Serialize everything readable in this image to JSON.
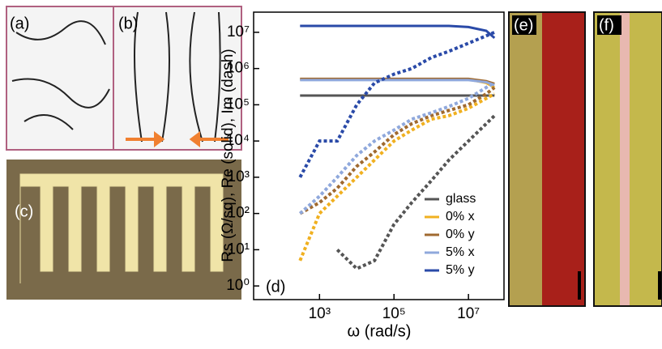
{
  "panels": {
    "a": "(a)",
    "b": "(b)",
    "c": "(c)",
    "e": "(e)",
    "f": "(f)"
  },
  "chart_data": {
    "type": "line",
    "annotation": "(d)",
    "xlabel": "ω (rad/s)",
    "ylabel": "Rs (Ω/sq),  Re (solid),  Im (dash)",
    "log_x": true,
    "log_y": true,
    "legend": "lower right",
    "xlim": [
      17,
      90000000
    ],
    "ylim": [
      0.42,
      36000000
    ],
    "xticks": [
      {
        "value": 1000,
        "label": "10³"
      },
      {
        "value": 100000,
        "label": "10⁵"
      },
      {
        "value": 10000000,
        "label": "10⁷"
      }
    ],
    "yticks": [
      {
        "value": 1,
        "label": "10⁰"
      },
      {
        "value": 10,
        "label": "10¹"
      },
      {
        "value": 100,
        "label": "10²"
      },
      {
        "value": 1000,
        "label": "10³"
      },
      {
        "value": 10000,
        "label": "10⁴"
      },
      {
        "value": 100000,
        "label": "10⁵"
      },
      {
        "value": 1000000,
        "label": "10⁶"
      },
      {
        "value": 10000000,
        "label": "10⁷"
      }
    ],
    "x": [
      300,
      1000,
      3000,
      10000,
      30000,
      100000,
      300000,
      1000000,
      3000000,
      10000000,
      30000000,
      50000000
    ],
    "series": [
      {
        "name": "glass",
        "color": "#555555",
        "re": [
          180000,
          180000,
          180000,
          180000,
          180000,
          180000,
          180000,
          180000,
          180000,
          180000,
          180000,
          180000
        ],
        "im": [
          null,
          null,
          10,
          3,
          5,
          50,
          200,
          800,
          3000,
          10000,
          30000,
          50000
        ]
      },
      {
        "name": "0% x",
        "color": "#f0b020",
        "re": [
          500000,
          500000,
          500000,
          500000,
          500000,
          500000,
          500000,
          500000,
          500000,
          500000,
          400000,
          300000
        ],
        "im": [
          5,
          100,
          300,
          1000,
          3000,
          10000,
          20000,
          40000,
          50000,
          80000,
          150000,
          200000
        ]
      },
      {
        "name": "0% y",
        "color": "#a06a30",
        "re": [
          520000,
          520000,
          520000,
          520000,
          520000,
          520000,
          520000,
          520000,
          520000,
          520000,
          450000,
          380000
        ],
        "im": [
          100,
          200,
          500,
          2000,
          5000,
          15000,
          30000,
          50000,
          70000,
          100000,
          200000,
          300000
        ]
      },
      {
        "name": "5% x",
        "color": "#8fa8dc",
        "re": [
          480000,
          480000,
          480000,
          480000,
          480000,
          480000,
          480000,
          480000,
          480000,
          480000,
          420000,
          350000
        ],
        "im": [
          100,
          300,
          1000,
          4000,
          10000,
          20000,
          40000,
          60000,
          90000,
          150000,
          300000,
          400000
        ]
      },
      {
        "name": "5% y",
        "color": "#2a4aa8",
        "re": [
          15000000,
          15000000,
          15000000,
          15000000,
          15000000,
          15000000,
          15000000,
          15000000,
          15000000,
          14000000,
          11000000,
          7000000
        ],
        "im": [
          1000,
          10000,
          10000,
          100000,
          400000,
          700000,
          1000000,
          2000000,
          3000000,
          5000000,
          8000000,
          10000000
        ]
      }
    ]
  }
}
